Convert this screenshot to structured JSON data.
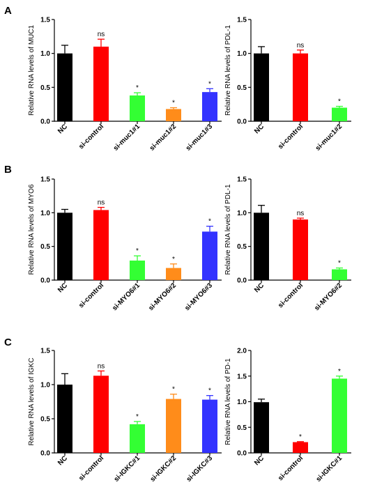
{
  "panel_labels": [
    "A",
    "B",
    "C"
  ],
  "chart_data": [
    {
      "type": "bar",
      "panel": "A",
      "ylabel": "Relative RNA levels of MUC1",
      "categories": [
        "NC",
        "si-control",
        "si-muc1#1",
        "si-muc1#2",
        "si-muc1#3"
      ],
      "values": [
        1.0,
        1.1,
        0.38,
        0.18,
        0.43
      ],
      "errors": [
        0.12,
        0.11,
        0.04,
        0.02,
        0.05
      ],
      "annotations": [
        "",
        "ns",
        "*",
        "*",
        "*"
      ],
      "colors": [
        "#000000",
        "#ff0000",
        "#33ff33",
        "#ff8c1a",
        "#3333ff"
      ],
      "ylim": [
        0,
        1.5
      ],
      "yticks": [
        "0.0",
        "0.5",
        "1.0",
        "1.5"
      ]
    },
    {
      "type": "bar",
      "panel": "A",
      "ylabel": "Relative RNA levels of PDL-1",
      "categories": [
        "NC",
        "si-control",
        "si-muc1#2"
      ],
      "values": [
        1.0,
        1.0,
        0.2
      ],
      "errors": [
        0.1,
        0.05,
        0.02
      ],
      "annotations": [
        "",
        "ns",
        "*"
      ],
      "colors": [
        "#000000",
        "#ff0000",
        "#33ff33"
      ],
      "ylim": [
        0,
        1.5
      ],
      "yticks": [
        "0.0",
        "0.5",
        "1.0",
        "1.5"
      ]
    },
    {
      "type": "bar",
      "panel": "B",
      "ylabel": "Relative RNA levels of MYO6",
      "categories": [
        "NC",
        "si-control",
        "si-MYO6#1",
        "si-MYO6#2",
        "si-MYO6#3"
      ],
      "values": [
        1.0,
        1.04,
        0.29,
        0.18,
        0.72
      ],
      "errors": [
        0.05,
        0.04,
        0.07,
        0.06,
        0.08
      ],
      "annotations": [
        "",
        "ns",
        "*",
        "*",
        "*"
      ],
      "colors": [
        "#000000",
        "#ff0000",
        "#33ff33",
        "#ff8c1a",
        "#3333ff"
      ],
      "ylim": [
        0,
        1.5
      ],
      "yticks": [
        "0.0",
        "0.5",
        "1.0",
        "1.5"
      ]
    },
    {
      "type": "bar",
      "panel": "B",
      "ylabel": "Relative RNA levels of PDL-1",
      "categories": [
        "NC",
        "si-control",
        "si-MYO6#2"
      ],
      "values": [
        1.0,
        0.9,
        0.16
      ],
      "errors": [
        0.11,
        0.02,
        0.02
      ],
      "annotations": [
        "",
        "ns",
        "*"
      ],
      "colors": [
        "#000000",
        "#ff0000",
        "#33ff33"
      ],
      "ylim": [
        0,
        1.5
      ],
      "yticks": [
        "0.0",
        "0.5",
        "1.0",
        "1.5"
      ]
    },
    {
      "type": "bar",
      "panel": "C",
      "ylabel": "Relative RNA levels of IGKC",
      "categories": [
        "NC",
        "si-control",
        "si-IGKC#1",
        "si-IGKC#2",
        "si-IGKC#3"
      ],
      "values": [
        1.0,
        1.13,
        0.42,
        0.79,
        0.78
      ],
      "errors": [
        0.16,
        0.07,
        0.04,
        0.07,
        0.06
      ],
      "annotations": [
        "",
        "ns",
        "*",
        "*",
        "*"
      ],
      "colors": [
        "#000000",
        "#ff0000",
        "#33ff33",
        "#ff8c1a",
        "#3333ff"
      ],
      "ylim": [
        0,
        1.5
      ],
      "yticks": [
        "0.0",
        "0.5",
        "1.0",
        "1.5"
      ]
    },
    {
      "type": "bar",
      "panel": "C",
      "ylabel": "Relative RNA levels of PD-1",
      "categories": [
        "NC",
        "si-control",
        "si-IGKC#1"
      ],
      "values": [
        0.99,
        0.21,
        1.45
      ],
      "errors": [
        0.06,
        0.01,
        0.05
      ],
      "annotations": [
        "",
        "*",
        "*"
      ],
      "colors": [
        "#000000",
        "#ff0000",
        "#33ff33"
      ],
      "ylim": [
        0,
        2.0
      ],
      "yticks": [
        "0.0",
        "0.5",
        "1.0",
        "1.5",
        "2.0"
      ]
    }
  ]
}
